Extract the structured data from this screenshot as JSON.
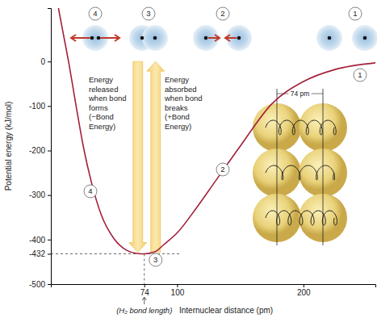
{
  "chart_data": {
    "type": "line",
    "x_label": "Internuclear distance (pm)",
    "y_label": "Potential energy (kJ/mol)",
    "x": [
      6,
      10,
      14,
      20,
      26,
      32,
      40,
      50,
      60,
      68,
      74,
      82,
      90,
      100,
      115,
      130,
      150,
      175,
      200,
      225,
      257
    ],
    "values": [
      120,
      60,
      0,
      -100,
      -195,
      -270,
      -345,
      -398,
      -424,
      -431,
      -432,
      -428,
      -410,
      -385,
      -330,
      -270,
      -190,
      -95,
      -45,
      -18,
      -3
    ],
    "color": "#a3203a",
    "xlim": [
      0,
      257
    ],
    "ylim": [
      -500,
      120
    ],
    "xticks": [
      74,
      100,
      200
    ],
    "yticks": [
      0,
      -100,
      -200,
      -300,
      -400,
      -432,
      -500
    ],
    "annotations": {
      "stage_labels": [
        "1",
        "2",
        "3",
        "4"
      ],
      "released_text": [
        "Energy",
        "released",
        "when bond",
        "forms",
        "(−Bond",
        "Energy)"
      ],
      "absorbed_text": [
        "Energy",
        "absorbed",
        "when bond",
        "breaks",
        "(+Bond",
        "Energy)"
      ],
      "bond_length_note": "(H₂ bond length)",
      "distance_label": "74 pm"
    }
  }
}
